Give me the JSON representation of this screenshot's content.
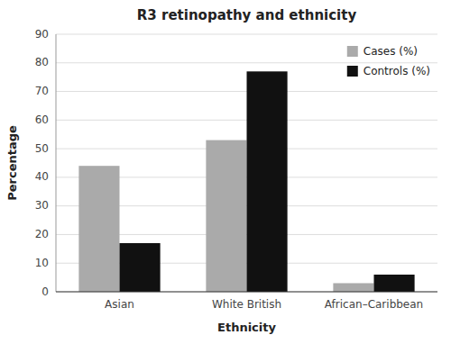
{
  "chart_data": {
    "type": "bar",
    "title": "R3 retinopathy and ethnicity",
    "xlabel": "Ethnicity",
    "ylabel": "Percentage",
    "categories": [
      "Asian",
      "White British",
      "African–Caribbean"
    ],
    "series": [
      {
        "name": "Cases (%)",
        "color": "#aaaaaa",
        "values": [
          44,
          53,
          3
        ]
      },
      {
        "name": "Controls (%)",
        "color": "#111111",
        "values": [
          17,
          77,
          6
        ]
      }
    ],
    "ylim": [
      0,
      90
    ],
    "yticks": [
      0,
      10,
      20,
      30,
      40,
      50,
      60,
      70,
      80,
      90
    ],
    "grid": true,
    "legend": "upper right"
  }
}
